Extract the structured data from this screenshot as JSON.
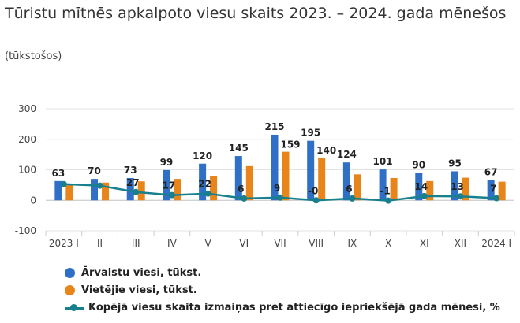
{
  "title": "Tūristu mītnēs apkalpoto viesu skaits 2023. – 2024. gada mēnešos",
  "subtitle": "(tūkstošos)",
  "colors": {
    "foreign": "#2f6fc6",
    "local": "#e8851a",
    "change": "#17808c"
  },
  "legend": {
    "foreign": "Ārvalstu viesi, tūkst.",
    "local": "Vietējie viesi, tūkst.",
    "change": "Kopējā viesu skaita izmaiņas pret attiecīgo iepriekšējā gada mēnesi, %"
  },
  "chart_data": {
    "type": "bar",
    "categories": [
      "2023 I",
      "II",
      "III",
      "IV",
      "V",
      "VI",
      "VII",
      "VIII",
      "IX",
      "X",
      "XI",
      "XII",
      "2024 I"
    ],
    "ylim": [
      -100,
      300
    ],
    "yticks": [
      -100,
      0,
      100,
      200,
      300
    ],
    "series": [
      {
        "name": "Ārvalstu viesi, tūkst.",
        "values": [
          63,
          70,
          73,
          99,
          120,
          145,
          215,
          195,
          124,
          101,
          90,
          95,
          67
        ]
      },
      {
        "name": "Vietējie viesi, tūkst.",
        "values": [
          53,
          58,
          62,
          70,
          80,
          112,
          159,
          140,
          85,
          73,
          63,
          74,
          61
        ]
      },
      {
        "name": "Kopējā viesu skaita izmaiņas pret attiecīgo iepriekšējā gada mēnesi, %",
        "type": "line",
        "values": [
          53,
          48,
          27,
          17,
          22,
          6,
          9,
          0,
          6,
          -1,
          14,
          13,
          7
        ]
      }
    ],
    "line_labels": [
      "",
      "",
      "27",
      "17",
      "22",
      "6",
      "9",
      "-0",
      "6",
      "-1",
      "14",
      "13",
      "7"
    ],
    "grid": true,
    "legend_position": "bottom"
  }
}
